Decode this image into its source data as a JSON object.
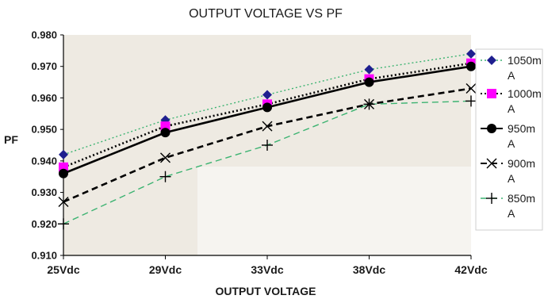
{
  "chart_data": {
    "type": "line",
    "title": "OUTPUT VOLTAGE VS PF",
    "xlabel": "OUTPUT VOLTAGE",
    "ylabel": "PF",
    "categories": [
      "25Vdc",
      "29Vdc",
      "33Vdc",
      "38Vdc",
      "42Vdc"
    ],
    "ylim": [
      0.91,
      0.98
    ],
    "yticks": [
      "0.910",
      "0.920",
      "0.930",
      "0.940",
      "0.950",
      "0.960",
      "0.970",
      "0.980"
    ],
    "grid": false,
    "legend_position": "right",
    "series": [
      {
        "name": "1050mA",
        "legend_lines": [
          "1050m",
          "A"
        ],
        "values": [
          0.942,
          0.953,
          0.961,
          0.969,
          0.974
        ],
        "color": "#1f1f8f",
        "marker": "diamond",
        "line_style": "dotted",
        "line_color": "#3cb371"
      },
      {
        "name": "1000mA",
        "legend_lines": [
          "1000m",
          "A"
        ],
        "values": [
          0.938,
          0.951,
          0.958,
          0.966,
          0.971
        ],
        "color": "#ff00ff",
        "marker": "square",
        "line_style": "dotted",
        "line_color": "#000000"
      },
      {
        "name": "950mA",
        "legend_lines": [
          "950m",
          "A"
        ],
        "values": [
          0.936,
          0.949,
          0.957,
          0.965,
          0.97
        ],
        "color": "#000000",
        "marker": "circle",
        "line_style": "solid",
        "line_color": "#000000"
      },
      {
        "name": "900mA",
        "legend_lines": [
          "900m",
          "A"
        ],
        "values": [
          0.927,
          0.941,
          0.951,
          0.958,
          0.963
        ],
        "color": "#000000",
        "marker": "x",
        "line_style": "dashed",
        "line_color": "#000000"
      },
      {
        "name": "850mA",
        "legend_lines": [
          "850m",
          "A"
        ],
        "values": [
          0.92,
          0.935,
          0.945,
          0.958,
          0.959
        ],
        "color": "#000000",
        "marker": "plus",
        "line_style": "dashed",
        "line_color": "#3cb371"
      }
    ],
    "colors": {
      "plot_background": "#eeeae2",
      "plot_light_region": "#f6f4f0"
    }
  }
}
